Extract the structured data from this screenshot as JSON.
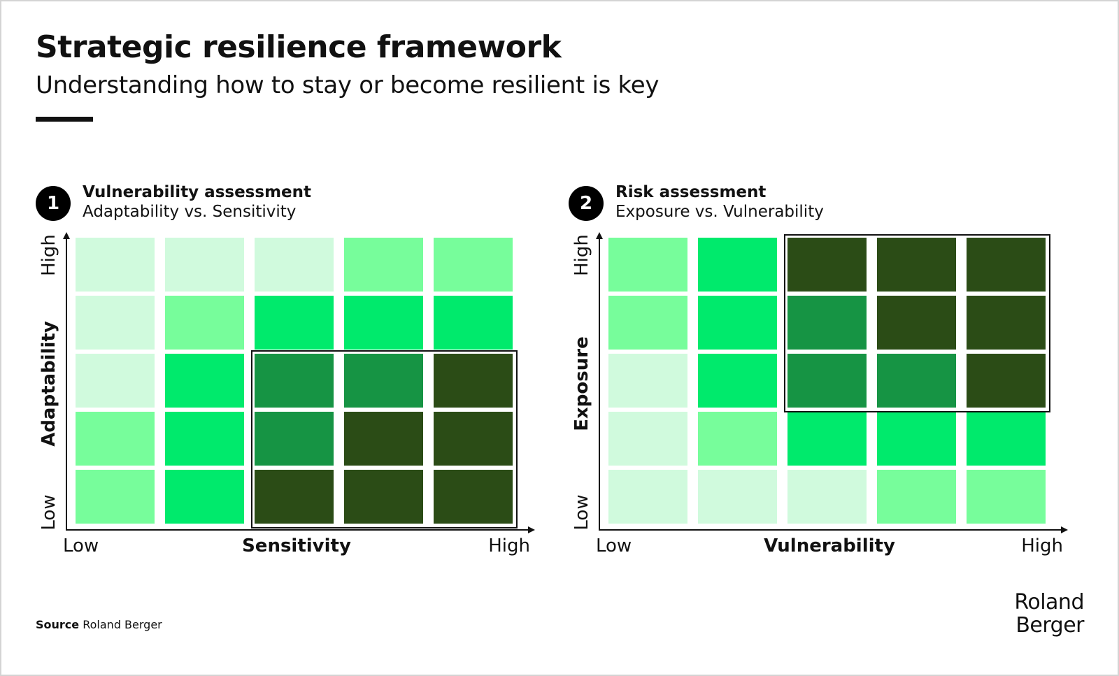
{
  "header": {
    "title": "Strategic resilience framework",
    "subtitle": "Understanding how to stay or become resilient is key"
  },
  "colors": {
    "level_1": "#d0fadd",
    "level_2": "#77fd9b",
    "level_3": "#00ea6c",
    "level_4": "#169444",
    "level_5": "#2b4c16",
    "accent": "#000000"
  },
  "panels": [
    {
      "number": "1",
      "heading": "Vulnerability assessment",
      "subheading": "Adaptability vs. Sensitivity",
      "y_axis": {
        "title": "Adaptability",
        "low": "Low",
        "high": "High"
      },
      "x_axis": {
        "title": "Sensitivity",
        "low": "Low",
        "high": "High"
      },
      "matrix_levels_top_to_bottom": [
        [
          1,
          1,
          1,
          2,
          2
        ],
        [
          1,
          2,
          3,
          3,
          3
        ],
        [
          1,
          3,
          4,
          4,
          5
        ],
        [
          2,
          3,
          4,
          5,
          5
        ],
        [
          2,
          3,
          5,
          5,
          5
        ]
      ],
      "highlighted_cells": {
        "rows": [
          2,
          4
        ],
        "cols": [
          2,
          4
        ]
      }
    },
    {
      "number": "2",
      "heading": "Risk assessment",
      "subheading": "Exposure vs. Vulnerability",
      "y_axis": {
        "title": "Exposure",
        "low": "Low",
        "high": "High"
      },
      "x_axis": {
        "title": "Vulnerability",
        "low": "Low",
        "high": "High"
      },
      "matrix_levels_top_to_bottom": [
        [
          2,
          3,
          5,
          5,
          5
        ],
        [
          2,
          3,
          4,
          5,
          5
        ],
        [
          1,
          3,
          4,
          4,
          5
        ],
        [
          1,
          2,
          3,
          3,
          3
        ],
        [
          1,
          1,
          1,
          2,
          2
        ]
      ],
      "highlighted_cells": {
        "rows": [
          0,
          2
        ],
        "cols": [
          2,
          4
        ]
      }
    }
  ],
  "footer": {
    "source_label": "Source",
    "source_text": "Roland Berger",
    "logo_line_1": "Roland",
    "logo_line_2": "Berger"
  }
}
